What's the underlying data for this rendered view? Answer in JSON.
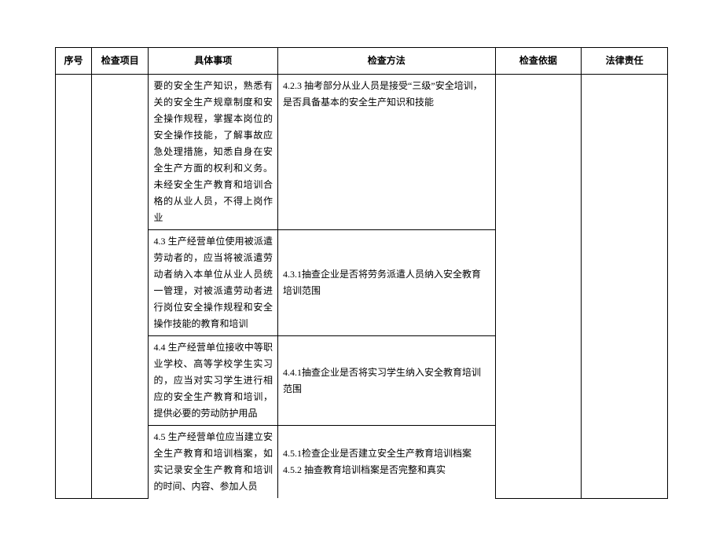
{
  "headers": {
    "seq": "序号",
    "item": "检查项目",
    "matter": "具体事项",
    "method": "检查方法",
    "basis": "检查依据",
    "liability": "法律责任"
  },
  "rows": [
    {
      "matter": "要的安全生产知识，熟悉有关的安全生产规章制度和安全操作规程，掌握本岗位的安全操作技能，了解事故应急处理措施，知悉自身在安全生产方面的权利和义务。未经安全生产教育和培训合格的从业人员，不得上岗作业",
      "method": "4.2.3 抽考部分从业人员是接受“三级”安全培训，是否具备基本的安全生产知识和技能"
    },
    {
      "matter": "4.3 生产经营单位使用被派遣劳动者的，应当将被派遣劳动者纳入本单位从业人员统一管理，对被派遣劳动者进行岗位安全操作规程和安全操作技能的教育和培训",
      "method": "4.3.1抽查企业是否将劳务派遣人员纳入安全教育培训范围"
    },
    {
      "matter": "4.4 生产经营单位接收中等职业学校、高等学校学生实习的，应当对实习学生进行相应的安全生产教育和培训，提供必要的劳动防护用品",
      "method": "4.4.1抽查企业是否将实习学生纳入安全教育培训范围"
    },
    {
      "matter": "4.5 生产经营单位应当建立安全生产教育和培训档案，如实记录安全生产教育和培训的时间、内容、参加人员",
      "method": "4.5.1检查企业是否建立安全生产教育培训档案\n4.5.2 抽查教育培训档案是否完整和真实"
    }
  ],
  "styles": {
    "font_size": 12,
    "line_height": 1.75,
    "border_color": "#000000",
    "background_color": "#ffffff",
    "text_color": "#000000"
  }
}
